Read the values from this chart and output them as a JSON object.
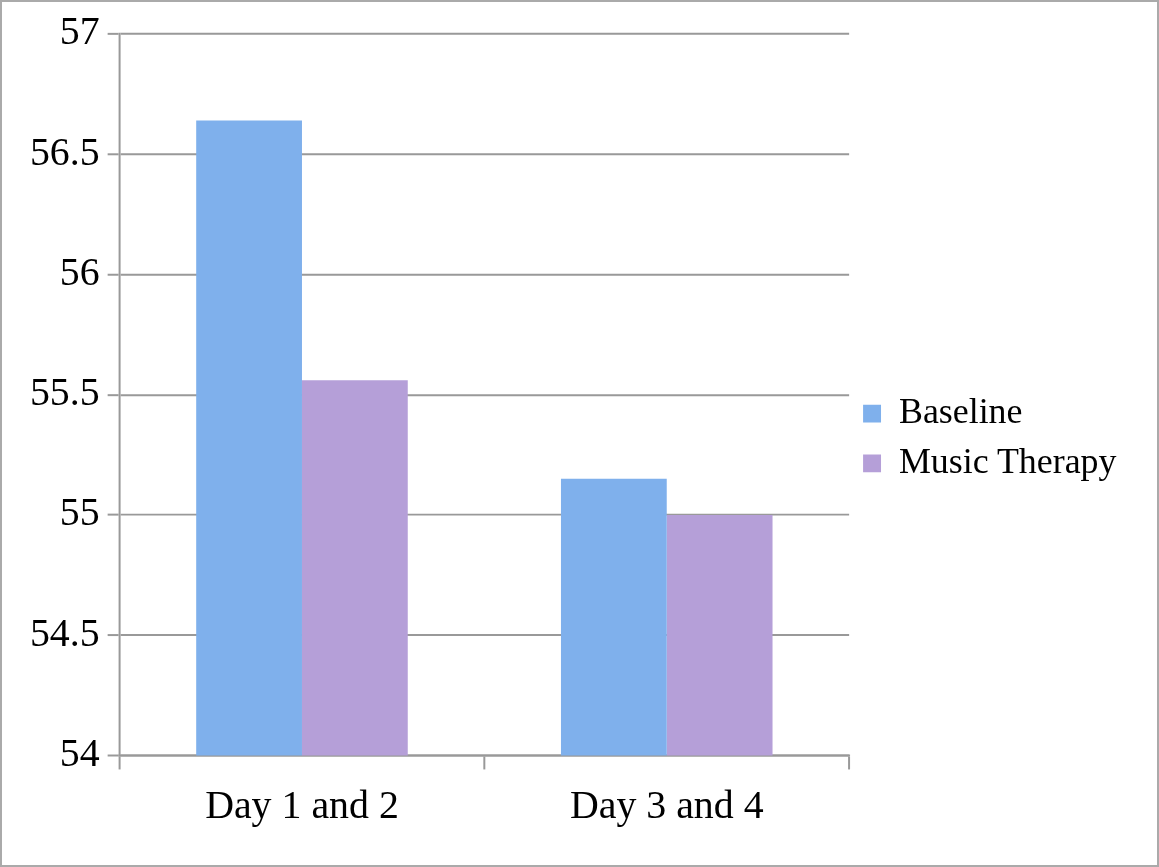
{
  "chart_data": {
    "type": "bar",
    "categories": [
      "Day 1 and 2",
      "Day 3 and 4"
    ],
    "series": [
      {
        "name": "Baseline",
        "color": "#7fb0ec",
        "values": [
          56.64,
          55.15
        ]
      },
      {
        "name": "Music Therapy",
        "color": "#b59fd8",
        "values": [
          55.56,
          55.0
        ]
      }
    ],
    "ylim": [
      54,
      57
    ],
    "yticks": [
      54,
      54.5,
      55,
      55.5,
      56,
      56.5,
      57
    ],
    "grid": "y",
    "legend": "right"
  }
}
